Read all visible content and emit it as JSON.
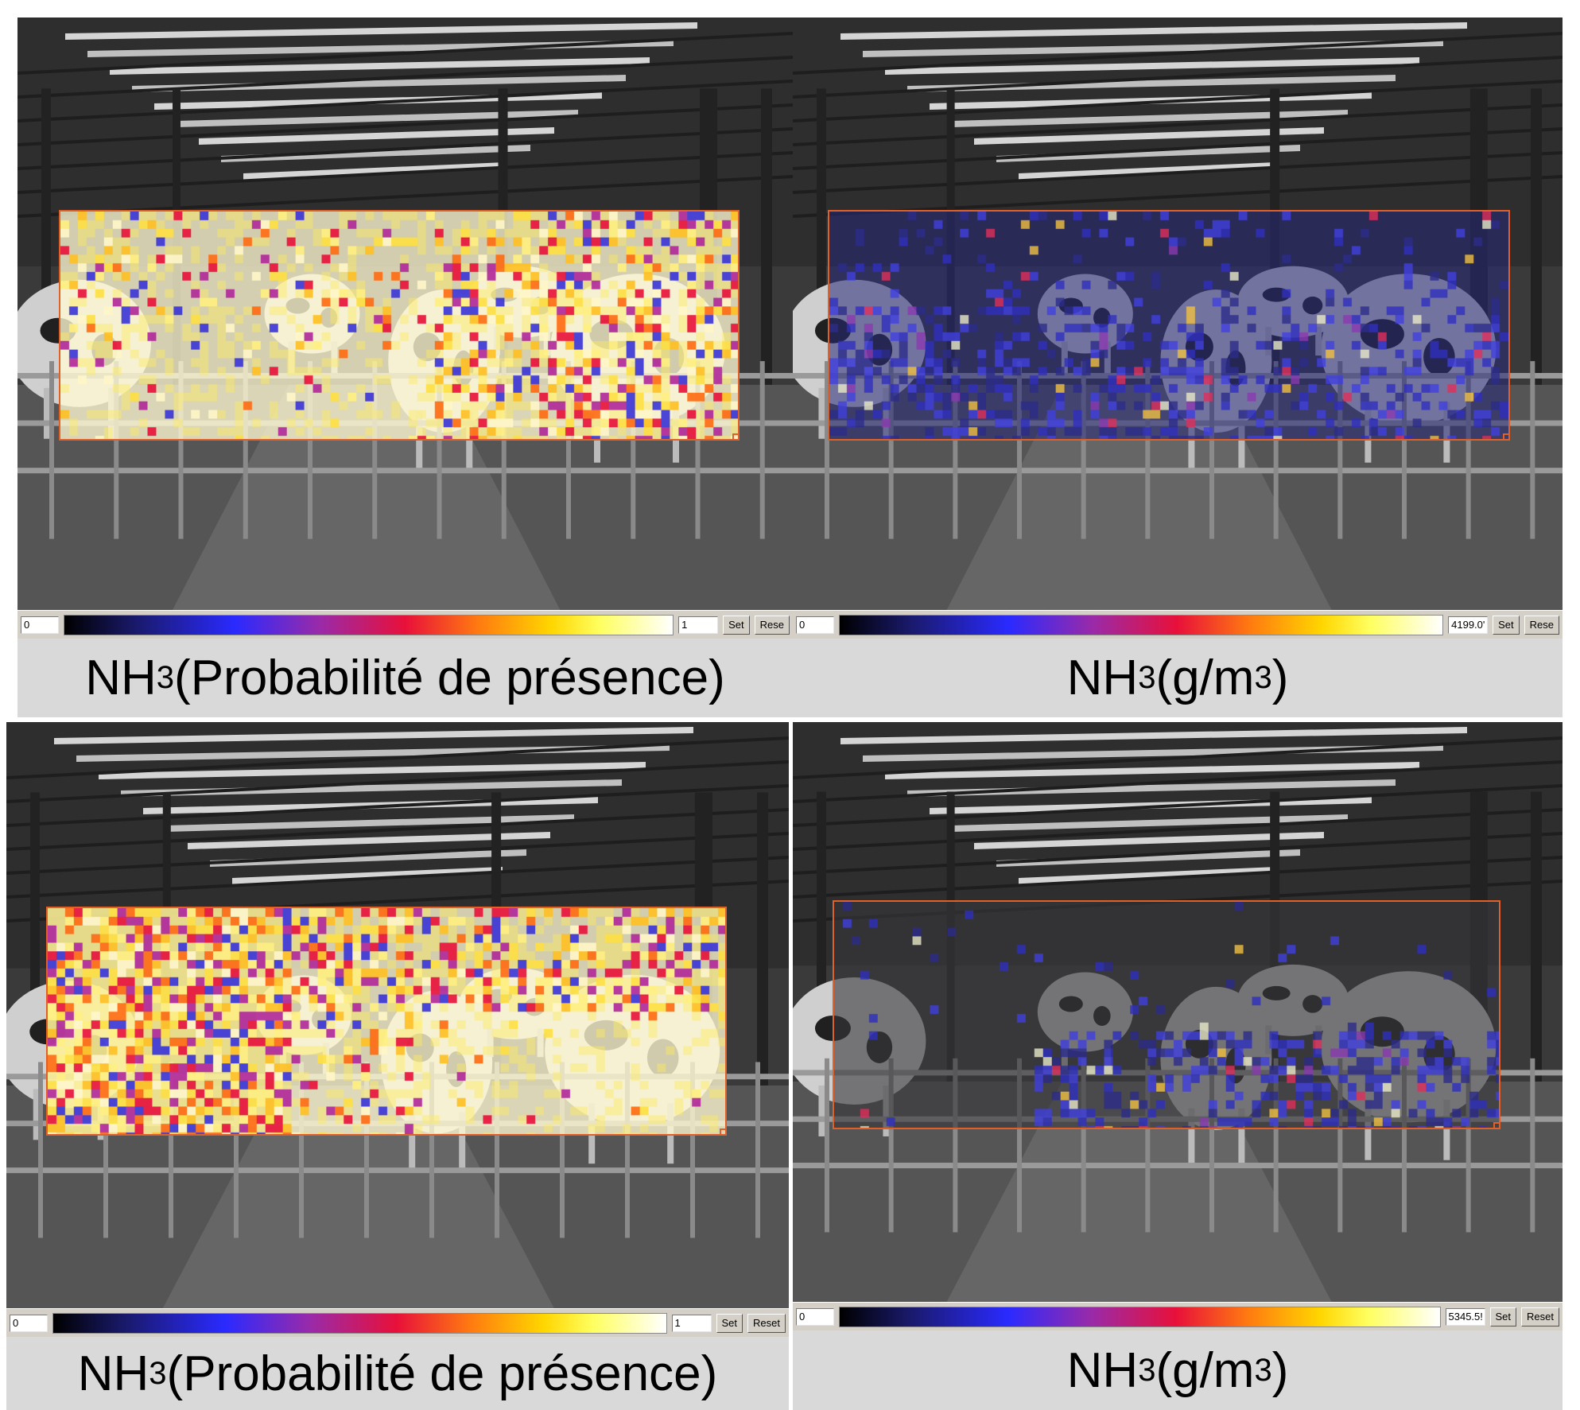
{
  "panels": [
    {
      "id": "top-left",
      "overlay_palette": "probability",
      "scale": {
        "min": "0",
        "max": "1",
        "set_label": "Set",
        "reset_label": "Rese"
      },
      "caption": {
        "species": "NH",
        "subscript": "3",
        "suffix": " (Probabilité de présence)",
        "superscript": ""
      }
    },
    {
      "id": "top-right",
      "overlay_palette": "concentration",
      "scale": {
        "min": "0",
        "max": "4199.0'",
        "set_label": "Set",
        "reset_label": "Rese"
      },
      "caption": {
        "species": "NH",
        "subscript": "3",
        "suffix": " (g/m",
        "superscript": "3",
        "close": ")"
      }
    },
    {
      "id": "bottom-left",
      "overlay_palette": "probability",
      "scale": {
        "min": "0",
        "max": "1",
        "set_label": "Set",
        "reset_label": "Reset"
      },
      "caption": {
        "species": "NH",
        "subscript": "3",
        "suffix": " (Probabilité de présence)",
        "superscript": ""
      }
    },
    {
      "id": "bottom-right",
      "overlay_palette": "concentration",
      "scale": {
        "min": "0",
        "max": "5345.5!",
        "set_label": "Set",
        "reset_label": "Reset"
      },
      "caption": {
        "species": "NH",
        "subscript": "3",
        "suffix": " (g/m",
        "superscript": "3",
        "close": ")"
      }
    }
  ],
  "colors": {
    "overlay_border": "#e0602a",
    "toolbar_bg": "#d4d0c8",
    "caption_bg": "#d9d9d9"
  }
}
